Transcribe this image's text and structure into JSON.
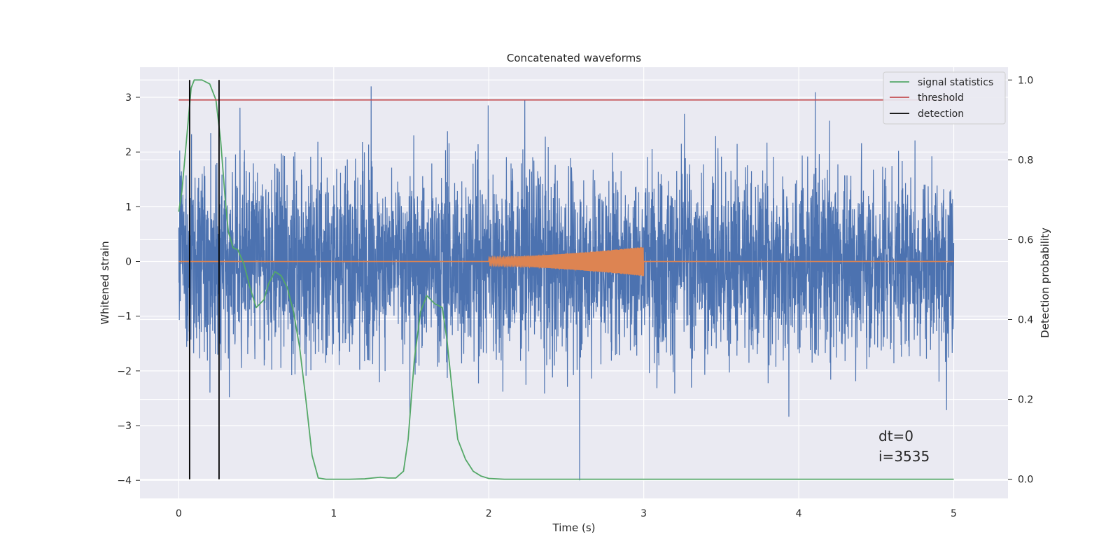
{
  "chart_data": {
    "type": "line",
    "title": "Concatenated waveforms",
    "xlabel": "Time (s)",
    "ylabel": "Whitened strain",
    "y2label": "Detection probability",
    "xlim": [
      -0.25,
      5.35
    ],
    "ylim": [
      -4.33,
      3.55
    ],
    "y2lim": [
      -0.048,
      1.032
    ],
    "xticks": [
      0,
      1,
      2,
      3,
      4,
      5
    ],
    "yticks": [
      -4,
      -3,
      -2,
      -1,
      0,
      1,
      2,
      3
    ],
    "y2ticks": [
      0.0,
      0.2,
      0.4,
      0.6,
      0.8,
      1.0
    ],
    "grid": true,
    "legend_position": "top-right",
    "colors": {
      "background": "#eaeaf2",
      "grid": "#ffffff",
      "strain": "#4c72b0",
      "waveform": "#dd8452",
      "signal_statistics": "#55a868",
      "threshold": "#c44e52",
      "detection": "#000000"
    },
    "strain_noise": {
      "x_range": [
        0,
        5
      ],
      "approx_range": [
        -4.0,
        3.2
      ],
      "typical_std": 0.85
    },
    "waveform": {
      "x_range": [
        2,
        3
      ],
      "amplitude_start": 0.08,
      "amplitude_end": 0.27
    },
    "series": [
      {
        "name": "signal statistics",
        "x": [
          0.0,
          0.02,
          0.05,
          0.08,
          0.1,
          0.15,
          0.2,
          0.24,
          0.27,
          0.3,
          0.32,
          0.35,
          0.38,
          0.42,
          0.46,
          0.5,
          0.55,
          0.58,
          0.62,
          0.66,
          0.7,
          0.74,
          0.78,
          0.82,
          0.86,
          0.9,
          0.95,
          1.0,
          1.1,
          1.2,
          1.25,
          1.3,
          1.35,
          1.4,
          1.45,
          1.48,
          1.52,
          1.56,
          1.6,
          1.65,
          1.7,
          1.73,
          1.77,
          1.8,
          1.85,
          1.9,
          1.95,
          2.0,
          2.1,
          2.5,
          3.0,
          3.5,
          4.0,
          4.5,
          5.0
        ],
        "values": [
          0.67,
          0.72,
          0.85,
          0.98,
          1.0,
          1.0,
          0.99,
          0.95,
          0.85,
          0.7,
          0.62,
          0.58,
          0.575,
          0.54,
          0.48,
          0.43,
          0.45,
          0.49,
          0.52,
          0.51,
          0.48,
          0.42,
          0.33,
          0.2,
          0.06,
          0.003,
          0.0,
          0.0,
          0.0,
          0.001,
          0.003,
          0.005,
          0.003,
          0.003,
          0.02,
          0.1,
          0.3,
          0.42,
          0.46,
          0.44,
          0.43,
          0.35,
          0.2,
          0.1,
          0.05,
          0.02,
          0.008,
          0.002,
          0.0,
          0.0,
          0.0,
          0.0,
          0.0,
          0.0,
          0.0
        ]
      },
      {
        "name": "threshold",
        "x": [
          0,
          5.03
        ],
        "values": [
          0.95,
          0.95
        ]
      },
      {
        "name": "detection",
        "x": [
          0.07,
          0.26
        ],
        "values": [
          0.0,
          1.0
        ]
      }
    ],
    "annotations": [
      "dt=0",
      "i=3535"
    ]
  }
}
